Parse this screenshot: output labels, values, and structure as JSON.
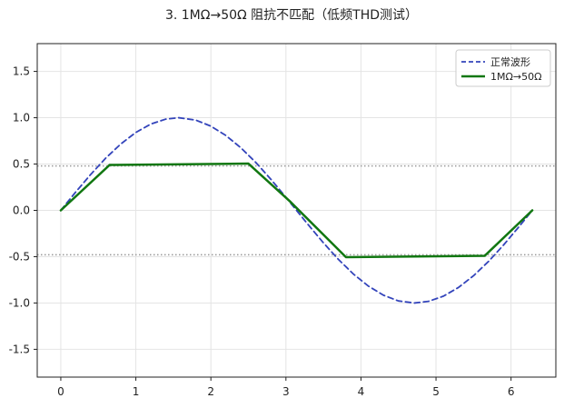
{
  "chart_data": {
    "type": "line",
    "title": "3. 1MΩ→50Ω 阻抗不匹配（低频THD测试）",
    "xlabel": "",
    "ylabel": "",
    "xlim": [
      -0.314,
      6.597
    ],
    "ylim": [
      -1.8,
      1.8
    ],
    "x_ticks": [
      0,
      1,
      2,
      3,
      4,
      5,
      6
    ],
    "y_ticks": [
      -1.5,
      -1.0,
      -0.5,
      0.0,
      0.5,
      1.0,
      1.5
    ],
    "x_tick_labels": [
      "0",
      "1",
      "2",
      "3",
      "4",
      "5",
      "6"
    ],
    "y_tick_labels": [
      "-1.5",
      "-1.0",
      "-0.5",
      "0.0",
      "0.5",
      "1.0",
      "1.5"
    ],
    "grid": true,
    "legend_position": "top-right",
    "reference_lines": [
      {
        "y": 0.48,
        "style": "dotted",
        "color": "#999999"
      },
      {
        "y": -0.48,
        "style": "dotted",
        "color": "#999999"
      }
    ],
    "series": [
      {
        "name": "正常波形",
        "style": "dashed",
        "color": "#3344bb",
        "x": [
          0,
          0.2,
          0.4,
          0.6,
          0.8,
          1.0,
          1.2,
          1.4,
          1.5708,
          1.8,
          2.0,
          2.2,
          2.4,
          2.6,
          2.8,
          3.0,
          3.1416,
          3.3,
          3.5,
          3.7,
          3.9,
          4.1,
          4.3,
          4.5,
          4.7124,
          4.9,
          5.1,
          5.3,
          5.5,
          5.7,
          5.9,
          6.1,
          6.2832
        ],
        "y": [
          0,
          0.199,
          0.389,
          0.565,
          0.717,
          0.841,
          0.932,
          0.985,
          1.0,
          0.974,
          0.909,
          0.808,
          0.675,
          0.516,
          0.335,
          0.141,
          0,
          -0.158,
          -0.351,
          -0.53,
          -0.688,
          -0.818,
          -0.916,
          -0.978,
          -1.0,
          -0.982,
          -0.926,
          -0.832,
          -0.706,
          -0.551,
          -0.374,
          -0.182,
          0
        ]
      },
      {
        "name": "1MΩ→50Ω",
        "style": "solid",
        "color": "#117711",
        "x": [
          0,
          0.65,
          2.5,
          3.05,
          3.8,
          5.65,
          6.2832
        ],
        "y": [
          0,
          0.49,
          0.505,
          0.1,
          -0.505,
          -0.49,
          0
        ]
      }
    ]
  }
}
